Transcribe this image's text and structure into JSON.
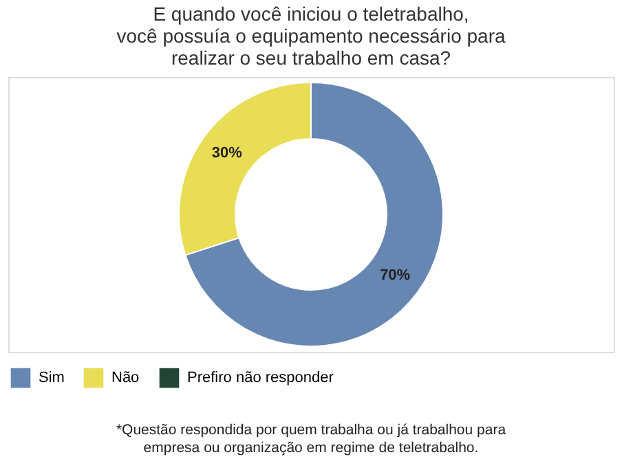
{
  "chart_data": {
    "type": "donut",
    "title": "E quando você iniciou o teletrabalho,\nvocê possuía o equipamento necessário para\nrealizar o seu trabalho em casa?",
    "categories": [
      "Sim",
      "Não",
      "Prefiro não responder"
    ],
    "values": [
      70,
      30,
      0
    ],
    "colors": [
      "#6787b3",
      "#e8dd55",
      "#234535"
    ],
    "value_labels": [
      "70%",
      "30%",
      null
    ],
    "legend": "bottom",
    "annotations": [
      "*Questão respondida por quem trabalha ou já trabalhou para\nempresa ou organização em regime de teletrabalho."
    ]
  }
}
